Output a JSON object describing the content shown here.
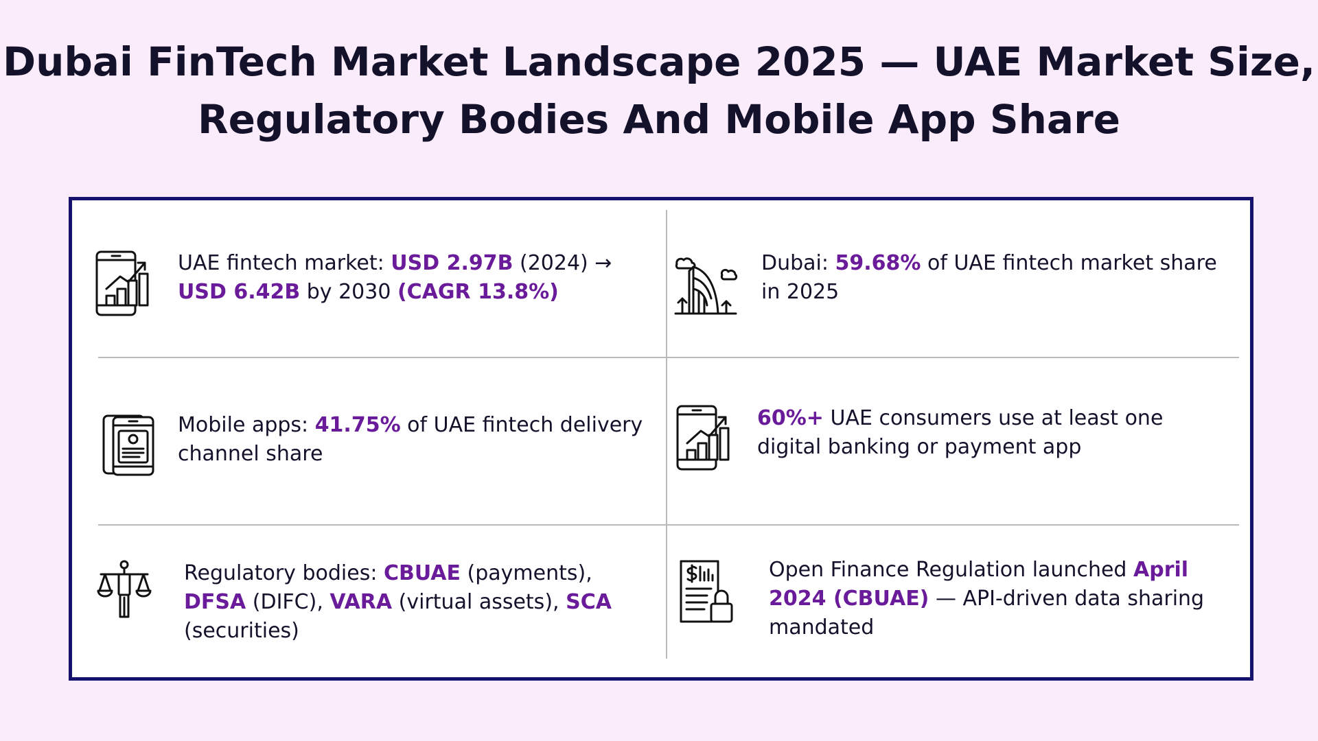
{
  "title": "Dubai FinTech Market Landscape 2025 — UAE Market Size, Regulatory Bodies And Mobile App Share",
  "colors": {
    "background": "#fbecfc",
    "card_border": "#15126e",
    "highlight": "#6a1b9a",
    "text": "#14122b",
    "divider": "#b9b9b9"
  },
  "cells": [
    {
      "icon": "phone-growth-chart-icon",
      "parts": [
        {
          "text": "UAE fintech market: ",
          "hl": false
        },
        {
          "text": "USD 2.97B",
          "hl": true
        },
        {
          "text": " (2024) → ",
          "hl": false
        },
        {
          "text": "USD 6.42B",
          "hl": true
        },
        {
          "text": " by 2030 ",
          "hl": false
        },
        {
          "text": "(CAGR 13.8%)",
          "hl": true
        }
      ]
    },
    {
      "icon": "dubai-skyline-icon",
      "parts": [
        {
          "text": "Dubai: ",
          "hl": false
        },
        {
          "text": "59.68%",
          "hl": true
        },
        {
          "text": " of UAE fintech market share in 2025",
          "hl": false
        }
      ]
    },
    {
      "icon": "mobile-app-icon",
      "parts": [
        {
          "text": "Mobile apps: ",
          "hl": false
        },
        {
          "text": "41.75%",
          "hl": true
        },
        {
          "text": " of UAE fintech delivery channel share",
          "hl": false
        }
      ]
    },
    {
      "icon": "phone-growth-chart-icon",
      "parts": [
        {
          "text": "60%+",
          "hl": true
        },
        {
          "text": " UAE consumers use at least one digital banking or payment app",
          "hl": false
        }
      ]
    },
    {
      "icon": "justice-scales-icon",
      "parts": [
        {
          "text": "Regulatory bodies: ",
          "hl": false
        },
        {
          "text": "CBUAE",
          "hl": true
        },
        {
          "text": " (payments), ",
          "hl": false
        },
        {
          "text": "DFSA",
          "hl": true
        },
        {
          "text": " (DIFC), ",
          "hl": false
        },
        {
          "text": "VARA",
          "hl": true
        },
        {
          "text": " (virtual assets), ",
          "hl": false
        },
        {
          "text": "SCA",
          "hl": true
        },
        {
          "text": " (securities)",
          "hl": false
        }
      ]
    },
    {
      "icon": "secure-document-icon",
      "parts": [
        {
          "text": "Open Finance Regulation launched ",
          "hl": false
        },
        {
          "text": "April 2024 (CBUAE)",
          "hl": true
        },
        {
          "text": " — API-driven data sharing mandated",
          "hl": false
        }
      ]
    }
  ]
}
